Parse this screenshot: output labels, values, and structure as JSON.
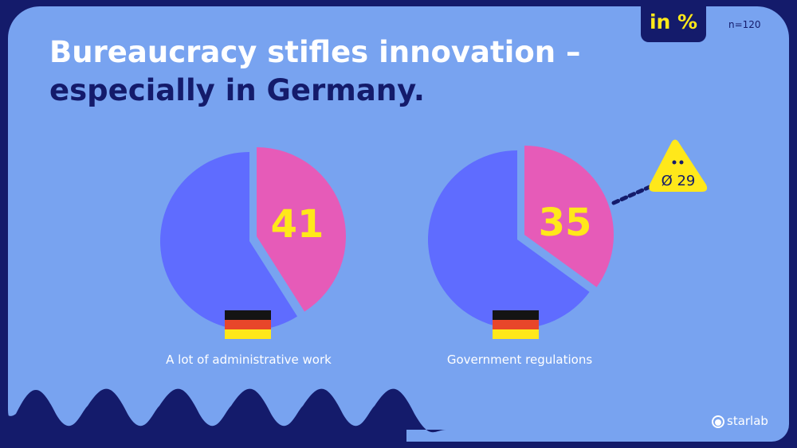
{
  "header": {
    "title_line1": "Bureaucracy stifles innovation –",
    "title_line2": "especially in Germany.",
    "unit_badge": "in %",
    "sample": "n=120"
  },
  "brand": "starlab",
  "colors": {
    "panel": "#78a3f0",
    "bg": "#141b6b",
    "slice": "#e65bb8",
    "rest": "#5f6cff",
    "value": "#ffe81a"
  },
  "chart_data": [
    {
      "type": "pie",
      "category": "A lot of administrative work",
      "country": "Germany",
      "values": [
        41,
        59
      ],
      "labels": [
        "41",
        ""
      ]
    },
    {
      "type": "pie",
      "category": "Government regulations",
      "country": "Germany",
      "values": [
        35,
        65
      ],
      "labels": [
        "35",
        ""
      ],
      "annotation": "Ø 29"
    }
  ]
}
